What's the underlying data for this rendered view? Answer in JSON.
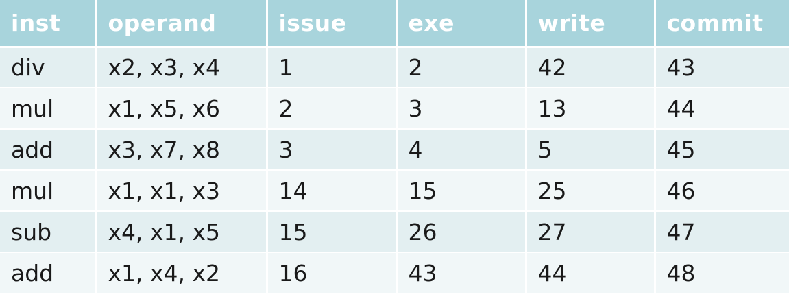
{
  "table": {
    "headers": [
      "inst",
      "operand",
      "issue",
      "exe",
      "write",
      "commit"
    ],
    "rows": [
      [
        "div",
        "x2, x3, x4",
        "1",
        "2",
        "42",
        "43"
      ],
      [
        "mul",
        "x1, x5, x6",
        "2",
        "3",
        "13",
        "44"
      ],
      [
        "add",
        "x3, x7, x8",
        "3",
        "4",
        "5",
        "45"
      ],
      [
        "mul",
        "x1, x1, x3",
        "14",
        "15",
        "25",
        "46"
      ],
      [
        "sub",
        "x4, x1, x5",
        "15",
        "26",
        "27",
        "47"
      ],
      [
        "add",
        "x1, x4, x2",
        "16",
        "43",
        "44",
        "48"
      ]
    ]
  },
  "colors": {
    "header_bg": "#a8d4dc",
    "header_text": "#ffffff",
    "row_odd_bg": "#e3eff1",
    "row_even_bg": "#f1f7f8",
    "cell_text": "#1a1a1a"
  }
}
